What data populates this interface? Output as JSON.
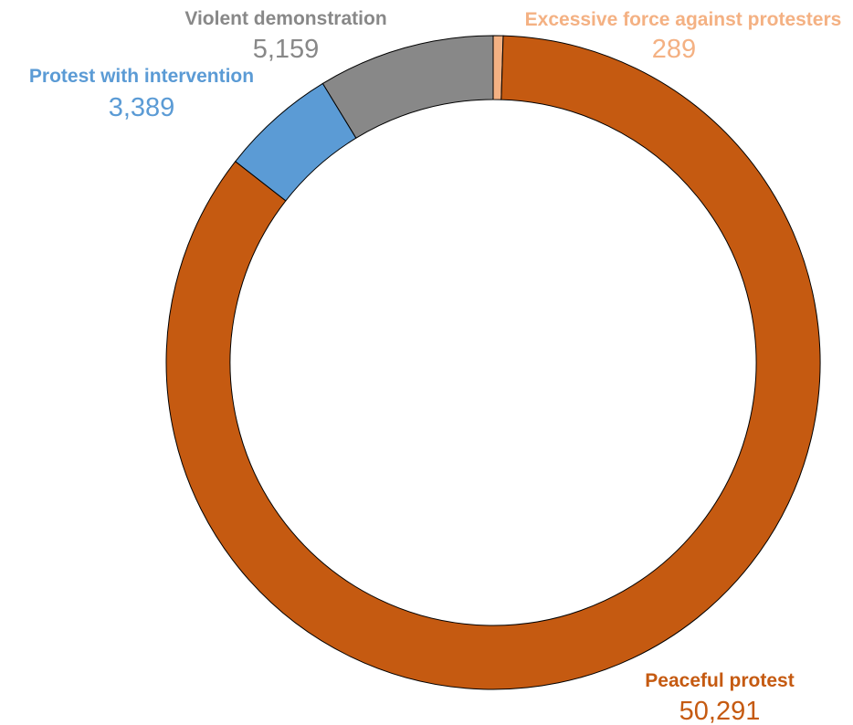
{
  "chart_data": {
    "type": "pie",
    "variant": "donut",
    "slices": [
      {
        "label": "Excessive force against protesters",
        "value": 289,
        "value_label": "289",
        "color": "#F4B183"
      },
      {
        "label": "Peaceful protest",
        "value": 50291,
        "value_label": "50,291",
        "color": "#C55A11"
      },
      {
        "label": "Protest with intervention",
        "value": 3389,
        "value_label": "3,389",
        "color": "#5B9BD5"
      },
      {
        "label": "Violent demonstration",
        "value": 5159,
        "value_label": "5,159",
        "color": "#888888"
      }
    ],
    "legend": "none",
    "title": ""
  }
}
